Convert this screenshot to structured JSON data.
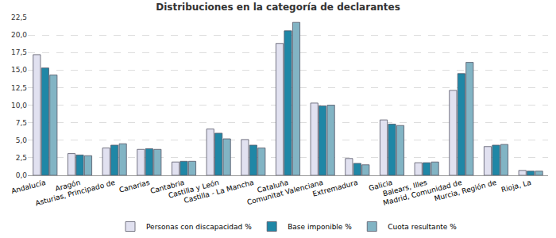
{
  "chart_data": {
    "type": "bar",
    "title": "Distribuciones en la categoría de declarantes",
    "categories": [
      "Andalucía",
      "Aragón",
      "Asturias, Principado de",
      "Canarias",
      "Cantabria",
      "Castilla y León",
      "Castilla - La Mancha",
      "Cataluña",
      "Comunitat Valenciana",
      "Extremadura",
      "Galicia",
      "Balears, Illes",
      "Madrid, Comunidad de",
      "Murcia, Región de",
      "Rioja, La"
    ],
    "series": [
      {
        "name": "Personas con discapacidad %",
        "color": "#e1e1f0",
        "values": [
          17.2,
          3.1,
          3.9,
          3.7,
          1.9,
          6.6,
          5.1,
          18.8,
          10.3,
          2.4,
          7.9,
          1.8,
          12.1,
          4.1,
          0.7
        ]
      },
      {
        "name": "Base imponible %",
        "color": "#1f87a6",
        "values": [
          15.3,
          2.9,
          4.3,
          3.8,
          2.0,
          6.0,
          4.3,
          20.6,
          9.9,
          1.7,
          7.3,
          1.8,
          14.5,
          4.3,
          0.6
        ]
      },
      {
        "name": "Cuota resultante %",
        "color": "#82b4c4",
        "values": [
          14.3,
          2.8,
          4.5,
          3.7,
          2.0,
          5.2,
          3.9,
          21.8,
          10.0,
          1.5,
          7.1,
          1.9,
          16.1,
          4.4,
          0.6
        ]
      }
    ],
    "ylim": [
      0,
      22.5
    ],
    "yticks": [
      {
        "value": 0,
        "label": "0,0"
      },
      {
        "value": 2.5,
        "label": "2,5"
      },
      {
        "value": 5,
        "label": "5,0"
      },
      {
        "value": 7.5,
        "label": "7,5"
      },
      {
        "value": 10,
        "label": "10,0"
      },
      {
        "value": 12.5,
        "label": "12,5"
      },
      {
        "value": 15,
        "label": "15,0"
      },
      {
        "value": 17.5,
        "label": "17,5"
      },
      {
        "value": 20,
        "label": "20,0"
      },
      {
        "value": 22.5,
        "label": "22,5"
      }
    ],
    "grid": true,
    "legend": "bottom"
  }
}
